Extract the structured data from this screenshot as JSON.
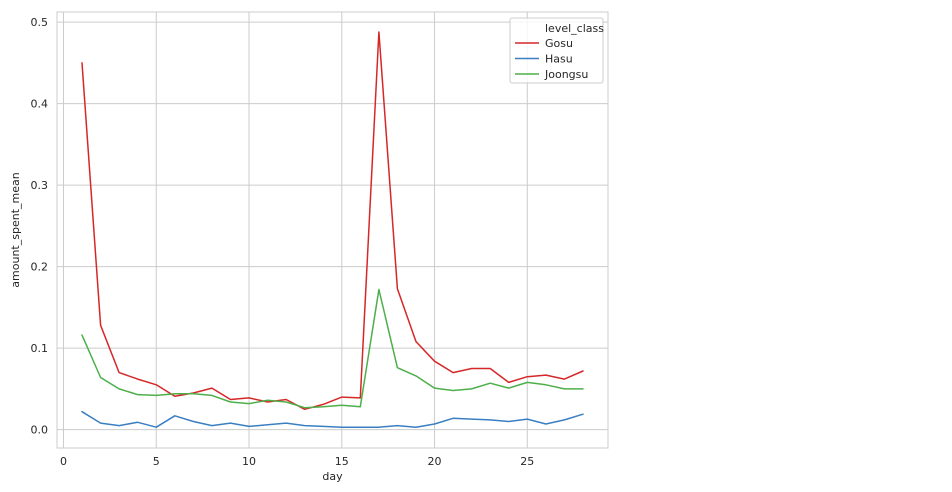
{
  "chart_data": {
    "type": "line",
    "title": "",
    "xlabel": "day",
    "ylabel": "amount_spent_mean",
    "xlim": [
      -0.35,
      29.35
    ],
    "ylim": [
      -0.0225,
      0.5125
    ],
    "xticks": [
      0,
      5,
      10,
      15,
      20,
      25
    ],
    "yticks": [
      0.0,
      0.1,
      0.2,
      0.3,
      0.4,
      0.5
    ],
    "xtick_labels": [
      "0",
      "5",
      "10",
      "15",
      "20",
      "25"
    ],
    "ytick_labels": [
      "0.0",
      "0.1",
      "0.2",
      "0.3",
      "0.4",
      "0.5"
    ],
    "grid": true,
    "legend": {
      "title": "level_class",
      "placement": "top-right"
    },
    "x": [
      1,
      2,
      3,
      4,
      5,
      6,
      7,
      8,
      9,
      10,
      11,
      12,
      13,
      14,
      15,
      16,
      17,
      18,
      19,
      20,
      21,
      22,
      23,
      24,
      25,
      26,
      27,
      28
    ],
    "series": [
      {
        "name": "Gosu",
        "color": "#d62728",
        "values": [
          0.45,
          0.128,
          0.07,
          0.062,
          0.055,
          0.041,
          0.045,
          0.051,
          0.037,
          0.039,
          0.034,
          0.037,
          0.025,
          0.031,
          0.04,
          0.039,
          0.488,
          0.173,
          0.108,
          0.084,
          0.07,
          0.075,
          0.075,
          0.058,
          0.065,
          0.067,
          0.062,
          0.072
        ]
      },
      {
        "name": "Hasu",
        "color": "#3a7fc1",
        "values": [
          0.022,
          0.008,
          0.005,
          0.009,
          0.003,
          0.017,
          0.01,
          0.005,
          0.008,
          0.004,
          0.006,
          0.008,
          0.005,
          0.004,
          0.003,
          0.003,
          0.003,
          0.005,
          0.003,
          0.007,
          0.014,
          0.013,
          0.012,
          0.01,
          0.013,
          0.007,
          0.012,
          0.019
        ]
      },
      {
        "name": "Joongsu",
        "color": "#4daf4a",
        "values": [
          0.116,
          0.064,
          0.05,
          0.043,
          0.042,
          0.044,
          0.044,
          0.042,
          0.034,
          0.032,
          0.036,
          0.034,
          0.027,
          0.028,
          0.03,
          0.028,
          0.172,
          0.076,
          0.066,
          0.051,
          0.048,
          0.05,
          0.057,
          0.051,
          0.058,
          0.055,
          0.05,
          0.05
        ]
      }
    ]
  }
}
